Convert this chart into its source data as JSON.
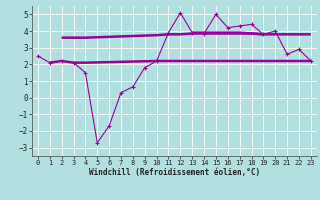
{
  "xlabel": "Windchill (Refroidissement éolien,°C)",
  "background_color": "#b2e0e0",
  "grid_color": "#ffffff",
  "line_color": "#990099",
  "x_values": [
    0,
    1,
    2,
    3,
    4,
    5,
    6,
    7,
    8,
    9,
    10,
    11,
    12,
    13,
    14,
    15,
    16,
    17,
    18,
    19,
    20,
    21,
    22,
    23
  ],
  "zigzag": [
    2.5,
    2.1,
    2.2,
    2.1,
    1.5,
    -2.7,
    -1.7,
    0.3,
    0.65,
    1.8,
    2.2,
    3.9,
    5.1,
    3.9,
    3.85,
    5.0,
    4.2,
    4.3,
    4.4,
    3.8,
    4.0,
    2.6,
    2.9,
    2.2
  ],
  "flat1_x": [
    2,
    3,
    4,
    10,
    11,
    12,
    13,
    14,
    15,
    16,
    17,
    18,
    19,
    20,
    21,
    22,
    23
  ],
  "flat1_y": [
    3.6,
    3.6,
    3.6,
    3.75,
    3.8,
    3.8,
    3.85,
    3.85,
    3.85,
    3.85,
    3.85,
    3.85,
    3.8,
    3.8,
    3.8,
    3.8,
    3.8
  ],
  "flat2_x": [
    1,
    2,
    3,
    4,
    10,
    11,
    12,
    13,
    14,
    15,
    16,
    17,
    18,
    19,
    20,
    21,
    22,
    23
  ],
  "flat2_y": [
    2.1,
    2.2,
    2.1,
    2.1,
    2.2,
    2.2,
    2.2,
    2.2,
    2.2,
    2.2,
    2.2,
    2.2,
    2.2,
    2.2,
    2.2,
    2.2,
    2.2,
    2.2
  ],
  "flat3_x": [
    13,
    14,
    15,
    16,
    17,
    18,
    19
  ],
  "flat3_y": [
    3.9,
    3.9,
    3.9,
    3.9,
    3.9,
    3.85,
    3.8
  ],
  "ylim": [
    -3.5,
    5.5
  ],
  "yticks": [
    -3,
    -2,
    -1,
    0,
    1,
    2,
    3,
    4,
    5
  ],
  "xlim": [
    -0.5,
    23.5
  ],
  "xticks": [
    0,
    1,
    2,
    3,
    4,
    5,
    6,
    7,
    8,
    9,
    10,
    11,
    12,
    13,
    14,
    15,
    16,
    17,
    18,
    19,
    20,
    21,
    22,
    23
  ]
}
